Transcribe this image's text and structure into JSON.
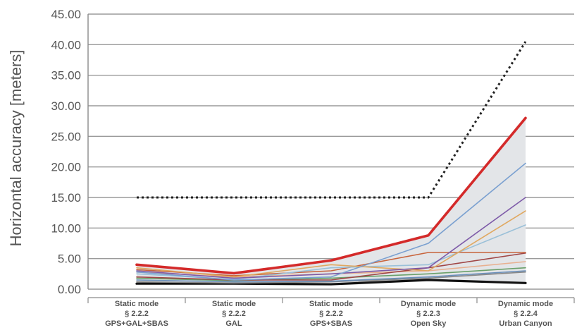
{
  "chart_data": {
    "type": "line",
    "title": "",
    "xlabel": "",
    "ylabel": "Horizontal accuracy [meters]",
    "ylim": [
      0,
      45
    ],
    "yticks": [
      "0.00",
      "5.00",
      "10.00",
      "15.00",
      "20.00",
      "25.00",
      "30.00",
      "35.00",
      "40.00",
      "45.00"
    ],
    "grid": true,
    "legend": "none",
    "categories": [
      [
        "Static mode",
        "§ 2.2.2",
        "GPS+GAL+SBAS"
      ],
      [
        "Static mode",
        "§ 2.2.2",
        "GAL"
      ],
      [
        "Static mode",
        "§ 2.2.2",
        "GPS+SBAS"
      ],
      [
        "Dynamic mode",
        "§ 2.2.3",
        "Open Sky"
      ],
      [
        "Dynamic mode",
        "§ 2.2.4",
        "Urban Canyon"
      ]
    ],
    "band": {
      "lower": [
        0.8,
        0.8,
        0.7,
        1.4,
        1.0
      ],
      "upper": [
        4.0,
        2.6,
        4.7,
        8.8,
        28.0
      ],
      "color": "#e3e5e8"
    },
    "requirement_line": {
      "values": [
        15.0,
        15.0,
        15.0,
        15.0,
        40.5
      ],
      "color": "#222222",
      "style": "dotted"
    },
    "series": [
      {
        "values": [
          4.0,
          2.6,
          4.7,
          8.8,
          28.0
        ],
        "color": "#d42a2a"
      },
      {
        "values": [
          2.8,
          1.5,
          2.0,
          7.5,
          20.6
        ],
        "color": "#7aa0d0"
      },
      {
        "values": [
          3.0,
          1.8,
          2.5,
          3.5,
          15.0
        ],
        "color": "#7d5aa8"
      },
      {
        "values": [
          3.5,
          2.0,
          4.0,
          3.0,
          12.8
        ],
        "color": "#e0a860"
      },
      {
        "values": [
          2.5,
          1.6,
          3.5,
          4.0,
          10.5
        ],
        "color": "#9ac0d8"
      },
      {
        "values": [
          3.2,
          2.2,
          3.0,
          6.0,
          6.0
        ],
        "color": "#c8643c"
      },
      {
        "values": [
          2.0,
          1.5,
          1.5,
          3.5,
          5.9
        ],
        "color": "#a04646"
      },
      {
        "values": [
          2.8,
          2.0,
          2.5,
          3.0,
          4.5
        ],
        "color": "#e8b090"
      },
      {
        "values": [
          1.8,
          1.4,
          1.8,
          2.5,
          3.5
        ],
        "color": "#6aa06a"
      },
      {
        "values": [
          1.5,
          1.2,
          1.3,
          2.0,
          3.0
        ],
        "color": "#6a8fba"
      },
      {
        "values": [
          1.2,
          1.0,
          1.2,
          1.8,
          2.8
        ],
        "color": "#888888"
      },
      {
        "values": [
          0.9,
          0.9,
          0.8,
          1.5,
          1.0
        ],
        "color": "#111111"
      }
    ]
  }
}
